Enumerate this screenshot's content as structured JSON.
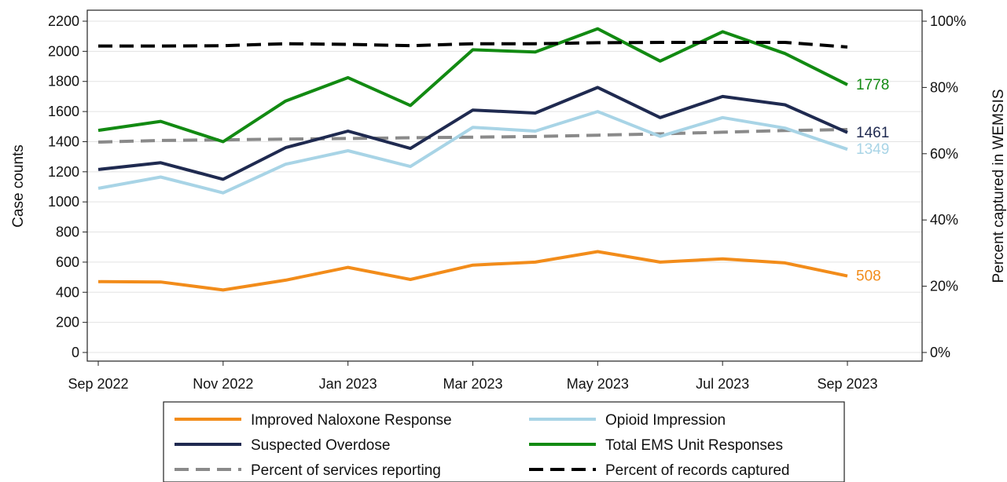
{
  "chart_data": {
    "type": "line",
    "x": [
      "Sep 2022",
      "Oct 2022",
      "Nov 2022",
      "Dec 2022",
      "Jan 2023",
      "Feb 2023",
      "Mar 2023",
      "Apr 2023",
      "May 2023",
      "Jun 2023",
      "Jul 2023",
      "Aug 2023",
      "Sep 2023"
    ],
    "x_tick_labels": [
      "Sep 2022",
      "Nov 2022",
      "Jan 2023",
      "Mar 2023",
      "May 2023",
      "Jul 2023",
      "Sep 2023"
    ],
    "y_left": {
      "label": "Case counts",
      "range": [
        0,
        2200
      ],
      "ticks": [
        0,
        200,
        400,
        600,
        800,
        1000,
        1200,
        1400,
        1600,
        1800,
        2000,
        2200
      ]
    },
    "y_right": {
      "label": "Percent captured in WEMSIS",
      "range": [
        0,
        100
      ],
      "ticks": [
        0,
        20,
        40,
        60,
        80,
        100
      ],
      "tick_labels": [
        "0%",
        "20%",
        "40%",
        "60%",
        "80%",
        "100%"
      ]
    },
    "grid": true,
    "legend_position": "bottom",
    "series": [
      {
        "name": "Improved Naloxone Response",
        "axis": "left",
        "color": "#F28C1A",
        "dash": false,
        "values": [
          470,
          468,
          415,
          480,
          565,
          485,
          580,
          600,
          670,
          600,
          622,
          595,
          508
        ],
        "end_label": "508"
      },
      {
        "name": "Opioid Impression",
        "axis": "left",
        "color": "#A8D4E6",
        "dash": false,
        "values": [
          1090,
          1165,
          1060,
          1250,
          1340,
          1235,
          1495,
          1470,
          1600,
          1435,
          1560,
          1490,
          1349
        ],
        "end_label": "1349"
      },
      {
        "name": "Suspected Overdose",
        "axis": "left",
        "color": "#1F2A50",
        "dash": false,
        "values": [
          1215,
          1260,
          1150,
          1360,
          1470,
          1355,
          1610,
          1590,
          1760,
          1560,
          1700,
          1645,
          1461
        ],
        "end_label": "1461"
      },
      {
        "name": "Total EMS Unit Responses",
        "axis": "left",
        "color": "#128A12",
        "dash": false,
        "values": [
          1475,
          1535,
          1400,
          1670,
          1825,
          1640,
          2010,
          1995,
          2150,
          1935,
          2130,
          1985,
          1778
        ],
        "end_label": "1778"
      },
      {
        "name": "Percent of services reporting",
        "axis": "right",
        "color": "#8A8A8A",
        "dash": true,
        "values": [
          63.5,
          64,
          64.2,
          64.4,
          64.6,
          64.8,
          65,
          65.2,
          65.6,
          66,
          66.5,
          67,
          67.3
        ]
      },
      {
        "name": "Percent of records captured",
        "axis": "right",
        "color": "#000000",
        "dash": true,
        "values": [
          92.5,
          92.5,
          92.6,
          93.2,
          93,
          92.6,
          93.2,
          93.2,
          93.5,
          93.6,
          93.6,
          93.6,
          92.2
        ]
      }
    ]
  }
}
